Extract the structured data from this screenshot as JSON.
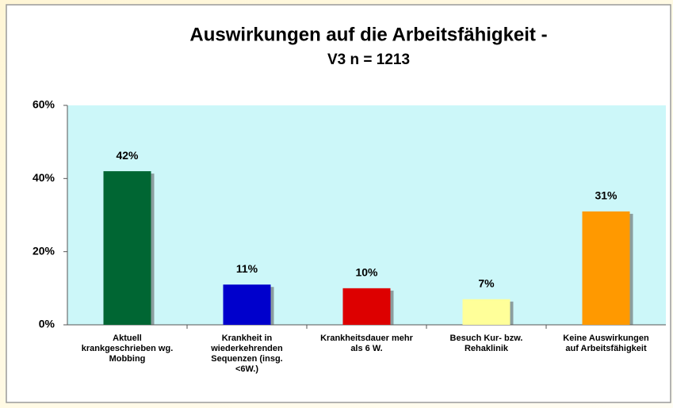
{
  "chart_data": {
    "type": "bar",
    "title": "Auswirkungen auf die Arbeitsfähigkeit  -",
    "subtitle": "V3  n = 1213",
    "categories": [
      [
        "Aktuell",
        "krankgeschrieben wg.",
        "Mobbing"
      ],
      [
        "Krankheit in",
        "wiederkehrenden",
        "Sequenzen (insg.",
        "<6W.)"
      ],
      [
        "Krankheitsdauer mehr",
        "als 6 W."
      ],
      [
        "Besuch Kur- bzw.",
        "Rehaklinik"
      ],
      [
        "Keine Auswirkungen",
        "auf Arbeitsfähigkeit"
      ]
    ],
    "values": [
      42,
      11,
      10,
      7,
      31
    ],
    "value_labels": [
      "42%",
      "11%",
      "10%",
      "7%",
      "31%"
    ],
    "colors": [
      "#006633",
      "#0000cc",
      "#dd0000",
      "#ffff99",
      "#ff9900"
    ],
    "ylim": [
      0,
      60
    ],
    "yticks": [
      {
        "value": 0,
        "label": "0%"
      },
      {
        "value": 20,
        "label": "20%"
      },
      {
        "value": 40,
        "label": "40%"
      },
      {
        "value": 60,
        "label": "60%"
      }
    ],
    "grid": false
  }
}
